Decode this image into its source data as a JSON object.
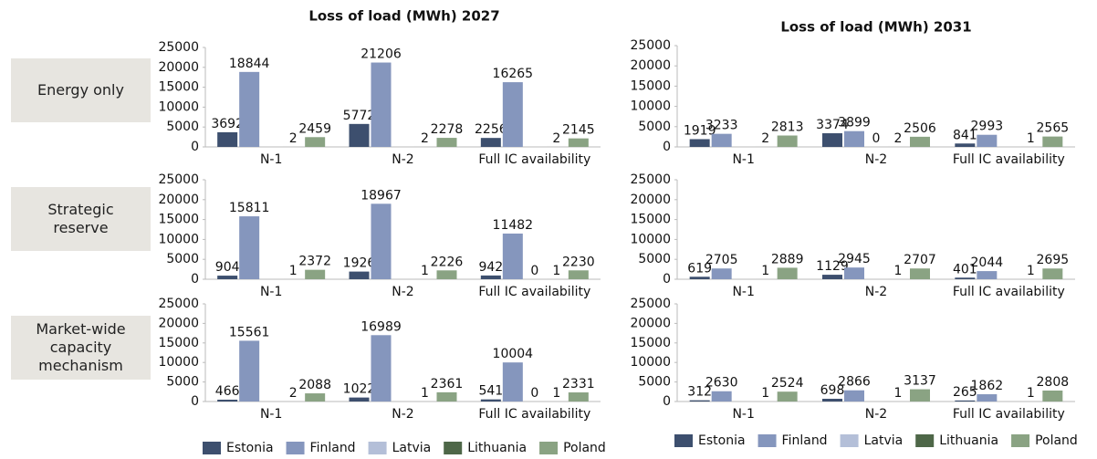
{
  "row_labels": [
    "Energy only",
    "Strategic reserve",
    "Market-wide capacity mechanism"
  ],
  "chart_data": [
    {
      "type": "bar",
      "title": "Loss of load (MWh) 2027",
      "categories": [
        "N-1",
        "N-2",
        "Full IC availability"
      ],
      "ylim": [
        0,
        25000
      ],
      "yticks": [
        0,
        5000,
        10000,
        15000,
        20000,
        25000
      ],
      "series": [
        {
          "name": "Estonia",
          "color": "#3d4f6e",
          "values": [
            3692,
            5772,
            2256
          ]
        },
        {
          "name": "Finland",
          "color": "#8596bd",
          "values": [
            18844,
            21206,
            16265
          ]
        },
        {
          "name": "Latvia",
          "color": "#b4bfd8",
          "values": [
            null,
            null,
            null
          ]
        },
        {
          "name": "Lithuania",
          "color": "#4e6748",
          "values": [
            2,
            2,
            2
          ]
        },
        {
          "name": "Poland",
          "color": "#8aa383",
          "values": [
            2459,
            2278,
            2145
          ]
        }
      ]
    },
    {
      "type": "bar",
      "title": "Loss of load (MWh) 2031",
      "categories": [
        "N-1",
        "N-2",
        "Full IC availability"
      ],
      "ylim": [
        0,
        25000
      ],
      "yticks": [
        0,
        5000,
        10000,
        15000,
        20000,
        25000
      ],
      "series": [
        {
          "name": "Estonia",
          "color": "#3d4f6e",
          "values": [
            1919,
            3374,
            841
          ]
        },
        {
          "name": "Finland",
          "color": "#8596bd",
          "values": [
            3233,
            3899,
            2993
          ]
        },
        {
          "name": "Latvia",
          "color": "#b4bfd8",
          "values": [
            null,
            0,
            null
          ]
        },
        {
          "name": "Lithuania",
          "color": "#4e6748",
          "values": [
            2,
            2,
            1
          ]
        },
        {
          "name": "Poland",
          "color": "#8aa383",
          "values": [
            2813,
            2506,
            2565
          ]
        }
      ]
    },
    {
      "type": "bar",
      "categories": [
        "N-1",
        "N-2",
        "Full IC availability"
      ],
      "ylim": [
        0,
        25000
      ],
      "yticks": [
        0,
        5000,
        10000,
        15000,
        20000,
        25000
      ],
      "series": [
        {
          "name": "Estonia",
          "color": "#3d4f6e",
          "values": [
            904,
            1926,
            942
          ]
        },
        {
          "name": "Finland",
          "color": "#8596bd",
          "values": [
            15811,
            18967,
            11482
          ]
        },
        {
          "name": "Latvia",
          "color": "#b4bfd8",
          "values": [
            null,
            null,
            0
          ]
        },
        {
          "name": "Lithuania",
          "color": "#4e6748",
          "values": [
            1,
            1,
            1
          ]
        },
        {
          "name": "Poland",
          "color": "#8aa383",
          "values": [
            2372,
            2226,
            2230
          ]
        }
      ]
    },
    {
      "type": "bar",
      "categories": [
        "N-1",
        "N-2",
        "Full IC availability"
      ],
      "ylim": [
        0,
        25000
      ],
      "yticks": [
        0,
        5000,
        10000,
        15000,
        20000,
        25000
      ],
      "series": [
        {
          "name": "Estonia",
          "color": "#3d4f6e",
          "values": [
            619,
            1129,
            401
          ]
        },
        {
          "name": "Finland",
          "color": "#8596bd",
          "values": [
            2705,
            2945,
            2044
          ]
        },
        {
          "name": "Latvia",
          "color": "#b4bfd8",
          "values": [
            null,
            null,
            null
          ]
        },
        {
          "name": "Lithuania",
          "color": "#4e6748",
          "values": [
            1,
            1,
            1
          ]
        },
        {
          "name": "Poland",
          "color": "#8aa383",
          "values": [
            2889,
            2707,
            2695
          ]
        }
      ]
    },
    {
      "type": "bar",
      "categories": [
        "N-1",
        "N-2",
        "Full IC availability"
      ],
      "ylim": [
        0,
        25000
      ],
      "yticks": [
        0,
        5000,
        10000,
        15000,
        20000,
        25000
      ],
      "series": [
        {
          "name": "Estonia",
          "color": "#3d4f6e",
          "values": [
            466,
            1022,
            541
          ]
        },
        {
          "name": "Finland",
          "color": "#8596bd",
          "values": [
            15561,
            16989,
            10004
          ]
        },
        {
          "name": "Latvia",
          "color": "#b4bfd8",
          "values": [
            null,
            null,
            0
          ]
        },
        {
          "name": "Lithuania",
          "color": "#4e6748",
          "values": [
            2,
            1,
            1
          ]
        },
        {
          "name": "Poland",
          "color": "#8aa383",
          "values": [
            2088,
            2361,
            2331
          ]
        }
      ]
    },
    {
      "type": "bar",
      "categories": [
        "N-1",
        "N-2",
        "Full IC availability"
      ],
      "ylim": [
        0,
        25000
      ],
      "yticks": [
        0,
        5000,
        10000,
        15000,
        20000,
        25000
      ],
      "series": [
        {
          "name": "Estonia",
          "color": "#3d4f6e",
          "values": [
            312,
            698,
            265
          ]
        },
        {
          "name": "Finland",
          "color": "#8596bd",
          "values": [
            2630,
            2866,
            1862
          ]
        },
        {
          "name": "Latvia",
          "color": "#b4bfd8",
          "values": [
            null,
            null,
            null
          ]
        },
        {
          "name": "Lithuania",
          "color": "#4e6748",
          "values": [
            1,
            1,
            1
          ]
        },
        {
          "name": "Poland",
          "color": "#8aa383",
          "values": [
            2524,
            3137,
            2808
          ]
        }
      ]
    }
  ]
}
